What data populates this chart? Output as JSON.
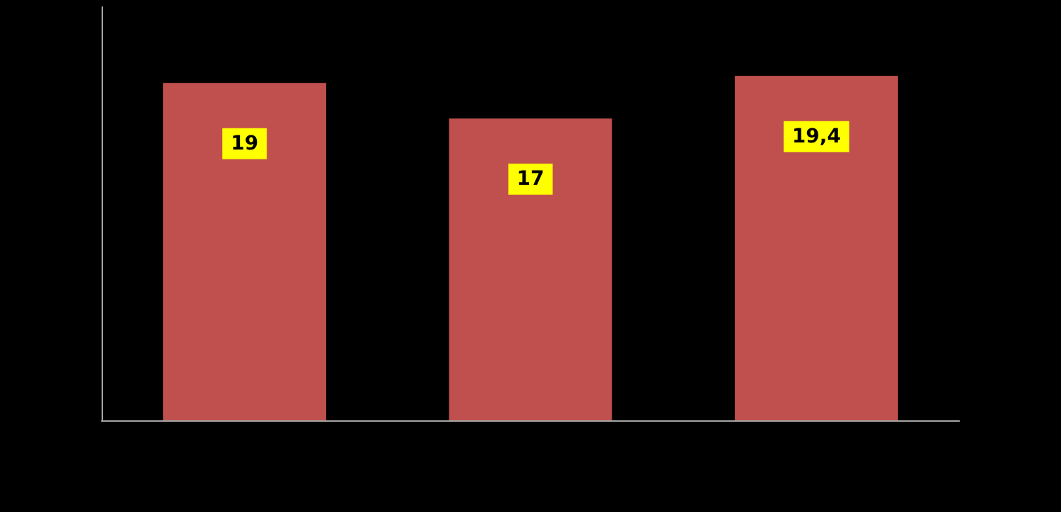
{
  "chart_data": {
    "type": "bar",
    "categories": [
      null,
      null,
      null
    ],
    "values": [
      19,
      17,
      19.4
    ],
    "value_labels": [
      "19",
      "17",
      "19,4"
    ],
    "color": "#c0504d"
  }
}
